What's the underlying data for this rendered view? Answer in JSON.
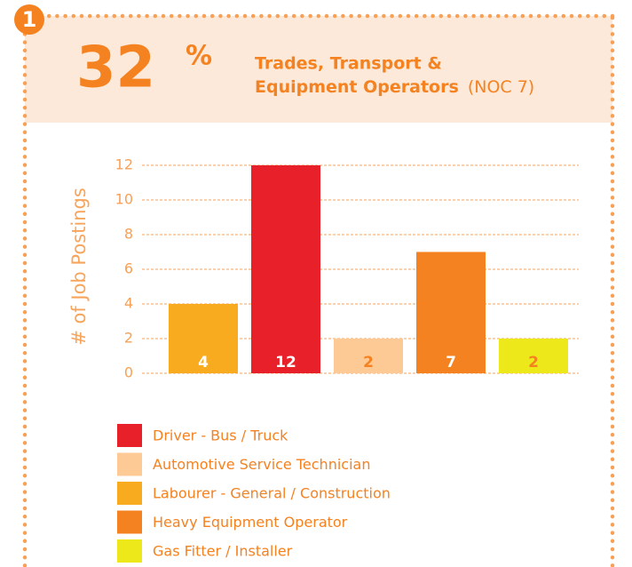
{
  "badge": "1",
  "headline_number": "32",
  "headline_unit": "%",
  "title_lines": [
    "Trades, Transport &",
    "Equipment Operators"
  ],
  "title_suffix": "(NOC 7)",
  "chart_data": {
    "type": "bar",
    "ylabel": "# of Job Postings",
    "categories": [
      null,
      null,
      null,
      null,
      null
    ],
    "values": [
      4,
      12,
      2,
      7,
      2
    ],
    "value_labels": [
      "4",
      "12",
      "2",
      "7",
      "2"
    ],
    "colors": [
      "#f9ab1f",
      "#e8202a",
      "#fdc994",
      "#f58220",
      "#ece81a"
    ],
    "value_label_colors": [
      "#ffffff",
      "#ffffff",
      "#f58220",
      "#ffffff",
      "#f58220"
    ],
    "ylim": [
      0,
      12
    ],
    "yticks": [
      0,
      2,
      4,
      6,
      8,
      10,
      12
    ],
    "grid": true,
    "legend": [
      {
        "name": "Driver - Bus / Truck",
        "color": "#e8202a"
      },
      {
        "name": "Automotive Service Technician",
        "color": "#fdc994"
      },
      {
        "name": "Labourer - General / Construction",
        "color": "#f9ab1f"
      },
      {
        "name": "Heavy Equipment Operator",
        "color": "#f58220"
      },
      {
        "name": "Gas Fitter / Installer",
        "color": "#ece81a"
      }
    ]
  }
}
